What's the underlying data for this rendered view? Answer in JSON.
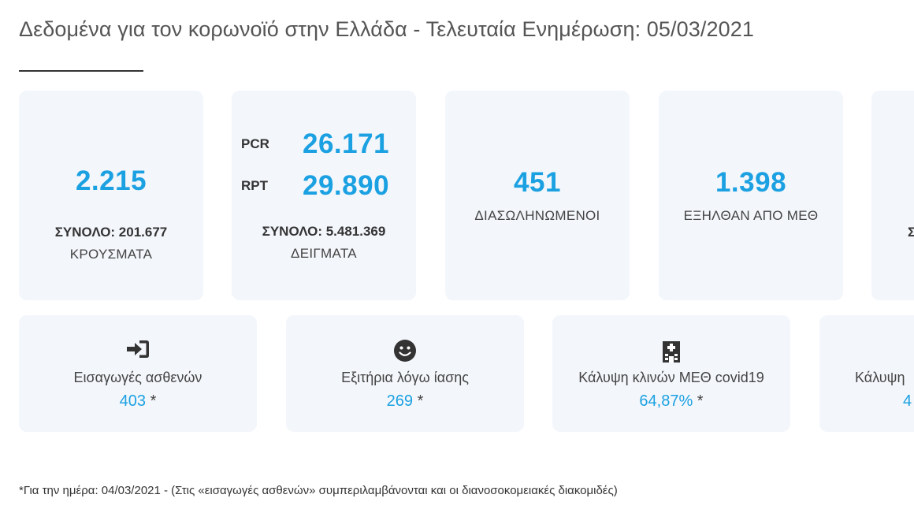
{
  "title": "Δεδομένα για τον κορωνοϊό στην Ελλάδα - Τελευταία Ενημέρωση: 05/03/2021",
  "cases": {
    "value": "2.215",
    "total": "ΣΥΝΟΛΟ: 201.677",
    "label": "ΚΡΟΥΣΜΑΤΑ"
  },
  "samples": {
    "pcr_label": "PCR",
    "pcr_value": "26.171",
    "rpt_label": "RPT",
    "rpt_value": "29.890",
    "total": "ΣΥΝΟΛΟ: 5.481.369",
    "label": "ΔΕΙΓΜΑΤΑ"
  },
  "intubated": {
    "value": "451",
    "label": "ΔΙΑΣΩΛΗΝΩΜΕΝΟΙ"
  },
  "icu_discharged": {
    "value": "1.398",
    "label": "ΕΞΗΛΘΑΝ ΑΠΟ ΜΕΘ"
  },
  "partial_card": {
    "total_fragment": "Σ"
  },
  "admissions": {
    "icon": "sign-in-icon",
    "label": "Εισαγωγές ασθενών",
    "value": "403",
    "asterisk": "*"
  },
  "recoveries": {
    "icon": "smile-icon",
    "label": "Εξιτήρια λόγω ίασης",
    "value": "269",
    "asterisk": "*"
  },
  "icu_coverage": {
    "icon": "hospital-icon",
    "label": "Κάλυψη κλινών ΜΕΘ covid19",
    "value": "64,87%",
    "asterisk": "*"
  },
  "partial_coverage": {
    "label_fragment": "Κάλυψη",
    "value_fragment": "4"
  },
  "footnote": "*Για την ημέρα: 04/03/2021 - (Στις «εισαγωγές ασθενών» συμπεριλαμβάνονται και οι διανοσοκομειακές διακομιδές)",
  "colors": {
    "accent": "#1ba1e2",
    "card_bg": "#f3f6fb",
    "text": "#333333"
  }
}
